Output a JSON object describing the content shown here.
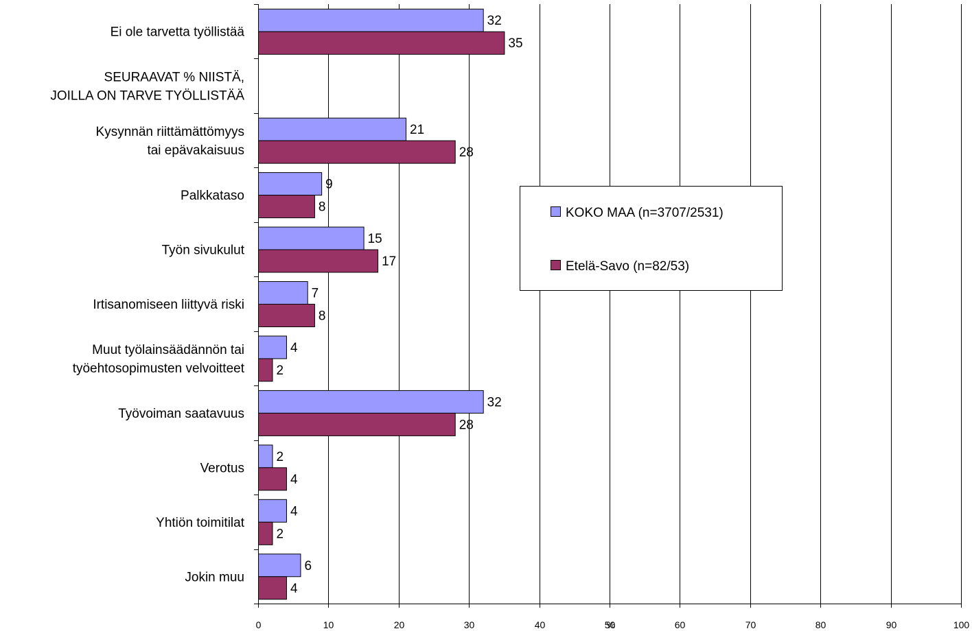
{
  "chart_data": {
    "type": "bar",
    "orientation": "horizontal",
    "title": "",
    "xlabel": "%",
    "ylabel": "",
    "xlim": [
      0,
      100
    ],
    "x_ticks": [
      0,
      10,
      20,
      30,
      40,
      50,
      60,
      70,
      80,
      90,
      100
    ],
    "grid": "vertical",
    "legend_position": "center-right",
    "categories": [
      {
        "lines": [
          "Ei ole tarvetta työllistää"
        ],
        "has_bars": true
      },
      {
        "lines": [
          "SEURAAVAT % NIISTÄ,",
          "JOILLA ON TARVE TYÖLLISTÄÄ"
        ],
        "has_bars": false
      },
      {
        "lines": [
          "Kysynnän riittämättömyys",
          "tai epävakaisuus"
        ],
        "has_bars": true
      },
      {
        "lines": [
          "Palkkataso"
        ],
        "has_bars": true
      },
      {
        "lines": [
          "Työn sivukulut"
        ],
        "has_bars": true
      },
      {
        "lines": [
          "Irtisanomiseen liittyvä riski"
        ],
        "has_bars": true
      },
      {
        "lines": [
          "Muut työlainsäädännön tai",
          "työehtosopimusten velvoitteet"
        ],
        "has_bars": true
      },
      {
        "lines": [
          "Työvoiman saatavuus"
        ],
        "has_bars": true
      },
      {
        "lines": [
          "Verotus"
        ],
        "has_bars": true
      },
      {
        "lines": [
          "Yhtiön toimitilat"
        ],
        "has_bars": true
      },
      {
        "lines": [
          "Jokin muu"
        ],
        "has_bars": true
      }
    ],
    "series": [
      {
        "name": "KOKO MAA (n=3707/2531)",
        "color": "#9999ff",
        "values": [
          32,
          null,
          21,
          9,
          15,
          7,
          4,
          32,
          2,
          4,
          6
        ]
      },
      {
        "name": "Etelä-Savo (n=82/53)",
        "color": "#993366",
        "values": [
          35,
          null,
          28,
          8,
          17,
          8,
          2,
          28,
          4,
          2,
          4
        ]
      }
    ]
  }
}
